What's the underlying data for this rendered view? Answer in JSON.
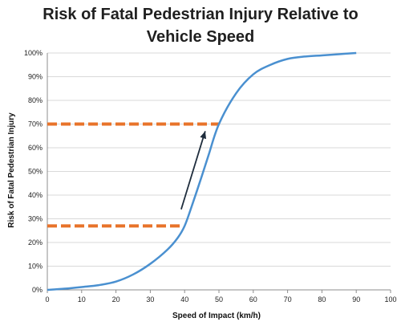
{
  "chart_data": {
    "type": "line",
    "title_lines": [
      "Risk of Fatal Pedestrian Injury Relative to",
      "Vehicle Speed"
    ],
    "xlabel": "Speed of Impact (km/h)",
    "ylabel": "Risk of Fatal Pedestrian Injury",
    "xlim": [
      0,
      100
    ],
    "ylim": [
      0,
      1
    ],
    "x_ticks": [
      0,
      10,
      20,
      30,
      40,
      50,
      60,
      70,
      80,
      90,
      100
    ],
    "x_tick_labels": [
      "0",
      "10",
      "20",
      "30",
      "40",
      "50",
      "60",
      "70",
      "80",
      "90",
      "100"
    ],
    "y_ticks": [
      0,
      0.1,
      0.2,
      0.3,
      0.4,
      0.5,
      0.6,
      0.7,
      0.8,
      0.9,
      1.0
    ],
    "y_tick_labels": [
      "0%",
      "10%",
      "20%",
      "30%",
      "40%",
      "50%",
      "60%",
      "70%",
      "80%",
      "90%",
      "100%"
    ],
    "grid": "horizontal",
    "legend": "none",
    "series": [
      {
        "color": "#4a90d0",
        "x": [
          0,
          5,
          10,
          15,
          20,
          25,
          30,
          35,
          38,
          40,
          42,
          45,
          47,
          50,
          55,
          60,
          65,
          70,
          75,
          80,
          85,
          90
        ],
        "y": [
          0,
          0.005,
          0.012,
          0.02,
          0.035,
          0.065,
          0.11,
          0.17,
          0.22,
          0.27,
          0.35,
          0.48,
          0.57,
          0.7,
          0.83,
          0.91,
          0.95,
          0.975,
          0.985,
          0.99,
          0.995,
          1.0
        ]
      }
    ],
    "reference_lines": [
      {
        "y": 0.7,
        "x_from": 0,
        "x_to": 50,
        "color": "#e8732a",
        "style": "dashed"
      },
      {
        "y": 0.27,
        "x_from": 0,
        "x_to": 39,
        "color": "#e8732a",
        "style": "dashed"
      }
    ],
    "arrow": {
      "from": [
        39,
        0.34
      ],
      "to": [
        46,
        0.67
      ],
      "color": "#1f2d3d"
    }
  }
}
